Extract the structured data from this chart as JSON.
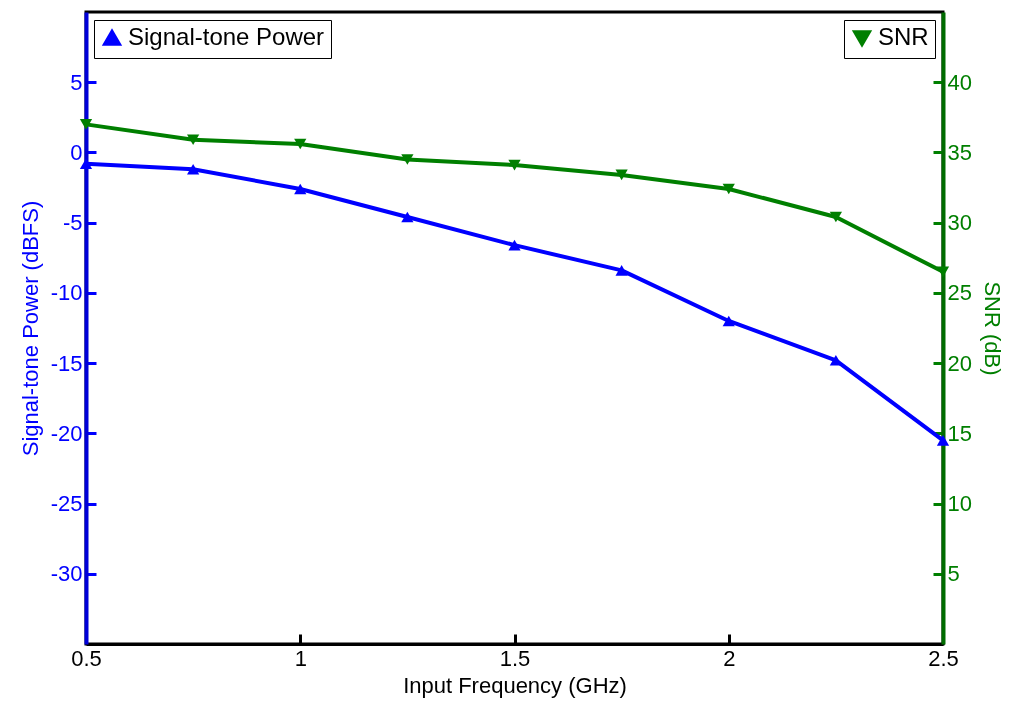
{
  "chart_data": {
    "type": "line",
    "xlabel": "Input Frequency (GHz)",
    "ylabel": "Signal-tone Power (dBFS)",
    "y2label": "SNR (dB)",
    "x": [
      0.5,
      0.75,
      1,
      1.25,
      1.5,
      1.75,
      2,
      2.25,
      2.5
    ],
    "xlim": [
      0.5,
      2.5
    ],
    "xticks": [
      0.5,
      1,
      1.5,
      2,
      2.5
    ],
    "ylim": [
      -35,
      10
    ],
    "yticks": [
      -30,
      -25,
      -20,
      -15,
      -10,
      -5,
      0,
      5
    ],
    "y2lim": [
      0,
      45
    ],
    "y2ticks": [
      5,
      10,
      15,
      20,
      25,
      30,
      35,
      40
    ],
    "series": [
      {
        "name": "Signal-tone Power",
        "color": "#0000ff",
        "values": [
          -0.8,
          -1.2,
          -2.6,
          -4.6,
          -6.6,
          -8.4,
          -12.0,
          -14.8,
          -20.5
        ]
      },
      {
        "name": "SNR",
        "color": "#007f00",
        "axis": "y2",
        "values": [
          37.0,
          35.9,
          35.6,
          34.5,
          34.1,
          33.4,
          32.4,
          30.4,
          26.5
        ]
      }
    ],
    "marker": "triangle",
    "line_style": "solid",
    "legend": "top",
    "grid": false
  }
}
